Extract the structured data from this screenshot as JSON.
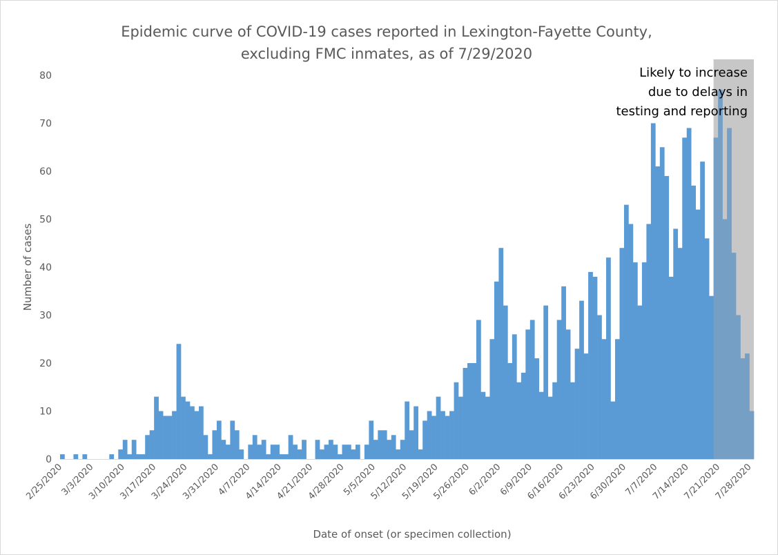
{
  "chart_data": {
    "type": "bar",
    "title_line1": "Epidemic curve of COVID-19 cases reported in Lexington-Fayette County,",
    "title_line2": "excluding FMC inmates, as of 7/29/2020",
    "xlabel": "Date of onset (or specimen collection)",
    "ylabel": "Number of cases",
    "ylim": [
      0,
      80
    ],
    "yticks": [
      0,
      10,
      20,
      30,
      40,
      50,
      60,
      70,
      80
    ],
    "grid": false,
    "bar_color": "#5b9bd5",
    "shade_color": "#a6a6a6",
    "start_date": "2/25/2020",
    "x_tick_labels": [
      "2/25/2020",
      "3/3/2020",
      "3/10/2020",
      "3/17/2020",
      "3/24/2020",
      "3/31/2020",
      "4/7/2020",
      "4/14/2020",
      "4/21/2020",
      "4/28/2020",
      "5/5/2020",
      "5/12/2020",
      "5/19/2020",
      "5/26/2020",
      "6/2/2020",
      "6/9/2020",
      "6/16/2020",
      "6/23/2020",
      "6/30/2020",
      "7/7/2020",
      "7/14/2020",
      "7/21/2020",
      "7/28/2020"
    ],
    "shaded_region": {
      "from": "7/20/2020",
      "to": "7/28/2020"
    },
    "annotation": [
      "Likely to increase",
      "due to delays in",
      "testing and reporting"
    ],
    "values": [
      1,
      0,
      0,
      1,
      0,
      1,
      0,
      0,
      0,
      0,
      0,
      1,
      0,
      2,
      4,
      1,
      4,
      1,
      1,
      5,
      6,
      13,
      10,
      9,
      9,
      10,
      24,
      13,
      12,
      11,
      10,
      11,
      5,
      1,
      6,
      8,
      4,
      3,
      8,
      6,
      2,
      0,
      3,
      5,
      3,
      4,
      1,
      3,
      3,
      1,
      1,
      5,
      3,
      2,
      4,
      0,
      0,
      4,
      2,
      3,
      4,
      3,
      1,
      3,
      3,
      2,
      3,
      0,
      3,
      8,
      4,
      6,
      6,
      4,
      5,
      2,
      4,
      12,
      6,
      11,
      2,
      8,
      10,
      9,
      13,
      10,
      9,
      10,
      16,
      13,
      19,
      20,
      20,
      29,
      14,
      13,
      25,
      37,
      44,
      32,
      20,
      26,
      16,
      18,
      27,
      29,
      21,
      14,
      32,
      13,
      16,
      29,
      36,
      27,
      16,
      23,
      33,
      22,
      39,
      38,
      30,
      25,
      42,
      12,
      25,
      44,
      53,
      49,
      41,
      32,
      41,
      49,
      70,
      61,
      65,
      59,
      38,
      48,
      44,
      67,
      69,
      57,
      52,
      62,
      46,
      34,
      67,
      77,
      50,
      69,
      43,
      30,
      21,
      22,
      10
    ]
  }
}
